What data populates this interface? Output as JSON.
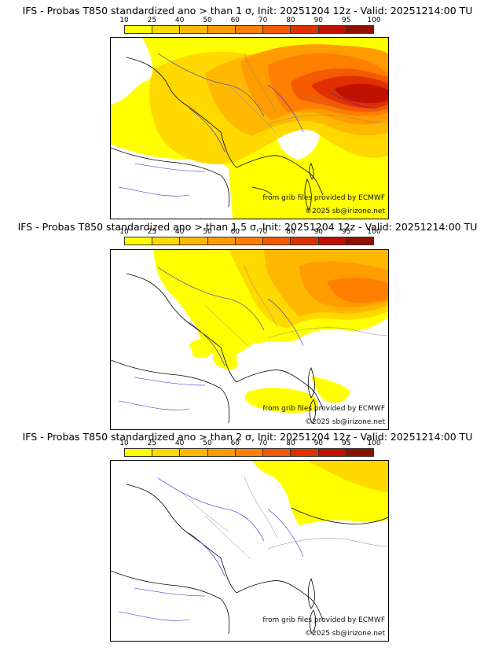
{
  "colorbar": {
    "ticks": [
      "10",
      "25",
      "40",
      "50",
      "60",
      "70",
      "80",
      "90",
      "95",
      "100"
    ],
    "colors": [
      "#ffff00",
      "#ffd800",
      "#ffb800",
      "#ff9c00",
      "#ff7f00",
      "#f45a00",
      "#e03000",
      "#c01000",
      "#901000"
    ]
  },
  "panels": [
    {
      "title": "IFS - Probas T850  standardized ano > than 1 σ, Init: 20251204 12z - Valid: 20251214:00 TU",
      "credit_source": "from grib files provided by ECMWF",
      "credit_copyright": "©2025 sb@irizone.net"
    },
    {
      "title": "IFS - Probas T850  standardized ano > than 1.5 σ, Init: 20251204 12z - Valid: 20251214:00 TU",
      "credit_source": "from grib files provided by ECMWF",
      "credit_copyright": "©2025 sb@irizone.net"
    },
    {
      "title": "IFS - Probas T850  standardized ano > than 2 σ, Init: 20251204 12z - Valid: 20251214:00 TU",
      "credit_source": "from grib files provided by ECMWF",
      "credit_copyright": "©2025 sb@irizone.net"
    }
  ]
}
